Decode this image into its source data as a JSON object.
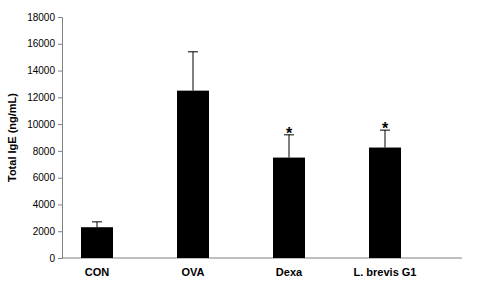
{
  "chart_data": {
    "type": "bar",
    "y_label": "Total IgE (ng/mL)",
    "categories": [
      "CON",
      "OVA",
      "Dexa",
      "L. brevis G1"
    ],
    "values": [
      2300,
      12500,
      7500,
      8250
    ],
    "errors": [
      400,
      2900,
      1700,
      1300
    ],
    "color": "#000000",
    "ylim": [
      0,
      18000
    ],
    "yticks": [
      0,
      2000,
      4000,
      6000,
      8000,
      10000,
      12000,
      14000,
      16000,
      18000
    ],
    "grid": false,
    "annotations": [
      {
        "text": "*",
        "category": "Dexa"
      },
      {
        "text": "*",
        "category": "L. brevis G1"
      }
    ]
  }
}
